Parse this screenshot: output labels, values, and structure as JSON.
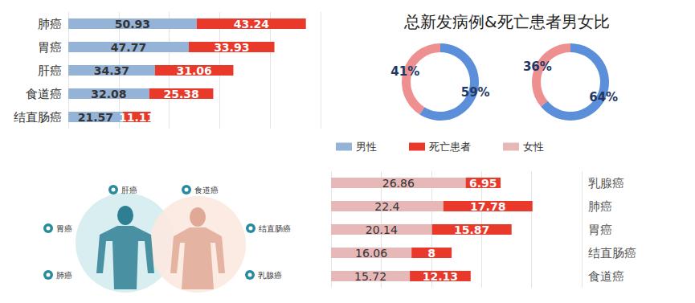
{
  "chart_data": [
    {
      "type": "bar",
      "orientation": "horizontal",
      "stacked": true,
      "data_labels": true,
      "grid": true,
      "tick_labels": false,
      "categories": [
        "肺癌",
        "胃癌",
        "肝癌",
        "食道癌",
        "结直肠癌"
      ],
      "series": [
        {
          "name": "男性",
          "color": "#95b3d7",
          "values": [
            50.93,
            47.77,
            34.37,
            32.08,
            21.57
          ]
        },
        {
          "name": "死亡患者",
          "color": "#e8392b",
          "values": [
            43.24,
            33.93,
            31.06,
            25.38,
            11.11
          ]
        }
      ],
      "xlim": [
        0,
        100
      ],
      "xticks": [
        0,
        20,
        40,
        60,
        80,
        100
      ]
    },
    {
      "type": "pie",
      "title": "总新发病例&死亡患者男女比",
      "categories": [
        "男性",
        "女性"
      ],
      "colors": [
        "#5b8fd9",
        "#ee8f90"
      ],
      "series": [
        {
          "values": [
            59,
            41
          ],
          "value_labels": [
            "59%",
            "41%"
          ]
        },
        {
          "values": [
            64,
            36
          ],
          "value_labels": [
            "64%",
            "36%"
          ]
        }
      ]
    },
    {
      "type": "bar",
      "orientation": "horizontal",
      "stacked": true,
      "data_labels": true,
      "grid": true,
      "tick_labels": false,
      "categories": [
        "乳腺癌",
        "肺癌",
        "胃癌",
        "结直肠癌",
        "食道癌"
      ],
      "series": [
        {
          "name": "女性",
          "color": "#e6b9b8",
          "values": [
            26.86,
            22.4,
            20.14,
            16.06,
            15.72
          ]
        },
        {
          "name": "死亡患者",
          "color": "#e8392b",
          "values": [
            6.95,
            17.78,
            15.87,
            8,
            12.13
          ]
        }
      ],
      "xlim": [
        0,
        50
      ],
      "xticks": [
        0,
        10,
        20,
        30,
        40,
        50
      ]
    }
  ],
  "illustration": {
    "labels": [
      "肝癌",
      "食道癌",
      "胃癌",
      "结直肠癌",
      "肺癌",
      "乳腺癌"
    ]
  }
}
